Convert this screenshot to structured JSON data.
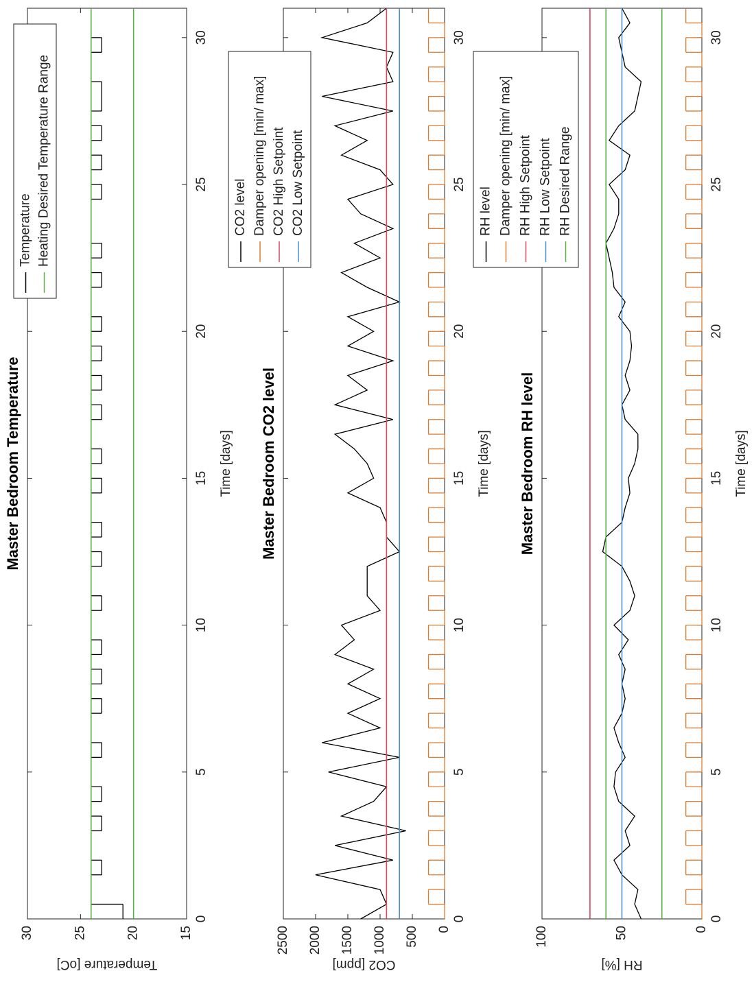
{
  "chart_data": [
    {
      "type": "line",
      "title": "Master Bedroom Temperature",
      "xlabel": "Time [days]",
      "ylabel": "Temperature [oC]",
      "xlim": [
        0,
        31
      ],
      "xticks": [
        0,
        5,
        10,
        15,
        20,
        25,
        30
      ],
      "ylim": [
        15,
        30
      ],
      "yticks": [
        15,
        20,
        25,
        30
      ],
      "legend": "upper right",
      "x": [
        0,
        0.5,
        1,
        1.5,
        2,
        2.5,
        3,
        3.5,
        4,
        4.5,
        5,
        5.5,
        6,
        6.5,
        7,
        7.5,
        8,
        8.5,
        9,
        9.5,
        10,
        10.5,
        11,
        11.5,
        12,
        12.5,
        13,
        13.5,
        14,
        14.5,
        15,
        15.5,
        16,
        16.5,
        17,
        17.5,
        18,
        18.5,
        19,
        19.5,
        20,
        20.5,
        21,
        21.5,
        22,
        22.5,
        23,
        23.5,
        24,
        24.5,
        25,
        25.5,
        26,
        26.5,
        27,
        27.5,
        28,
        28.5,
        29,
        29.5,
        30,
        30.5,
        31
      ],
      "series": [
        {
          "name": "Temperature",
          "color": "#000000",
          "step": true,
          "values": [
            21,
            24,
            24,
            23,
            24,
            24,
            23,
            24,
            23,
            24,
            24,
            23,
            24,
            24,
            23,
            24,
            23,
            24,
            23,
            24,
            24,
            23,
            24,
            24,
            23,
            24,
            23,
            24,
            24,
            23,
            24,
            23,
            24,
            24,
            23,
            24,
            23,
            24,
            23,
            24,
            23,
            24,
            24,
            23,
            24,
            23,
            24,
            24,
            24,
            23,
            24,
            23,
            24,
            23,
            24,
            23,
            23,
            24,
            24,
            23,
            24,
            24,
            23
          ]
        },
        {
          "name": "Heating Desired Temperature Range",
          "color": "#5fae47",
          "range": [
            20,
            24
          ]
        }
      ]
    },
    {
      "type": "line",
      "title": "Master Bedroom CO2 level",
      "xlabel": "Time [days]",
      "ylabel": "CO2 [ppm]",
      "xlim": [
        0,
        31
      ],
      "xticks": [
        0,
        5,
        10,
        15,
        20,
        25,
        30
      ],
      "ylim": [
        0,
        2500
      ],
      "yticks": [
        0,
        500,
        1000,
        1500,
        2000,
        2500
      ],
      "legend": "upper right",
      "x": [
        0,
        0.5,
        1,
        1.5,
        2,
        2.5,
        3,
        3.5,
        4,
        4.5,
        5,
        5.5,
        6,
        6.5,
        7,
        7.5,
        8,
        8.5,
        9,
        9.5,
        10,
        10.5,
        11,
        11.5,
        12,
        12.5,
        13,
        13.5,
        14,
        14.5,
        15,
        15.5,
        16,
        16.5,
        17,
        17.5,
        18,
        18.5,
        19,
        19.5,
        20,
        20.5,
        21,
        21.5,
        22,
        22.5,
        23,
        23.5,
        24,
        24.5,
        25,
        25.5,
        26,
        26.5,
        27,
        27.5,
        28,
        28.5,
        29,
        29.5,
        30,
        30.5,
        31
      ],
      "series": [
        {
          "name": "CO2 level",
          "color": "#000000",
          "values": [
            1300,
            900,
            1000,
            2000,
            800,
            1700,
            600,
            1600,
            1100,
            900,
            1800,
            700,
            1900,
            1000,
            1500,
            1000,
            1500,
            1100,
            1700,
            1400,
            1600,
            1000,
            1200,
            1200,
            1200,
            700,
            900,
            900,
            1000,
            1500,
            1100,
            1200,
            1400,
            1700,
            800,
            1700,
            1200,
            1500,
            800,
            1500,
            1100,
            1500,
            700,
            1200,
            1600,
            1000,
            1400,
            800,
            1300,
            1500,
            800,
            1000,
            1600,
            1200,
            1700,
            800,
            1900,
            800,
            900,
            800,
            1900,
            1200,
            900
          ]
        },
        {
          "name": "Damper opening [min/ max]",
          "color": "#e07a2c",
          "step": true,
          "values": [
            0,
            250,
            0,
            250,
            0,
            250,
            0,
            250,
            0,
            250,
            0,
            250,
            0,
            250,
            0,
            250,
            0,
            250,
            0,
            250,
            0,
            250,
            0,
            250,
            0,
            250,
            0,
            250,
            0,
            250,
            0,
            250,
            0,
            250,
            0,
            250,
            0,
            250,
            0,
            250,
            0,
            250,
            0,
            250,
            0,
            250,
            0,
            250,
            0,
            250,
            0,
            250,
            0,
            250,
            0,
            250,
            0,
            250,
            0,
            250,
            0,
            250,
            0
          ]
        },
        {
          "name": "CO2 High Setpoint",
          "color": "#d9465e",
          "hline": 900
        },
        {
          "name": "CO2 Low Setpoint",
          "color": "#4a90cc",
          "hline": 700
        }
      ]
    },
    {
      "type": "line",
      "title": "Master Bedroom RH level",
      "xlabel": "Time [days]",
      "ylabel": "RH [%]",
      "xlim": [
        0,
        31
      ],
      "xticks": [
        0,
        5,
        10,
        15,
        20,
        25,
        30
      ],
      "ylim": [
        0,
        100
      ],
      "yticks": [
        0,
        50,
        100
      ],
      "legend": "upper right",
      "x": [
        0,
        0.5,
        1,
        1.5,
        2,
        2.5,
        3,
        3.5,
        4,
        4.5,
        5,
        5.5,
        6,
        6.5,
        7,
        7.5,
        8,
        8.5,
        9,
        9.5,
        10,
        10.5,
        11,
        11.5,
        12,
        12.5,
        13,
        13.5,
        14,
        14.5,
        15,
        15.5,
        16,
        16.5,
        17,
        17.5,
        18,
        18.5,
        19,
        19.5,
        20,
        20.5,
        21,
        21.5,
        22,
        22.5,
        23,
        23.5,
        24,
        24.5,
        25,
        25.5,
        26,
        26.5,
        27,
        27.5,
        28,
        28.5,
        29,
        29.5,
        30,
        30.5,
        31
      ],
      "series": [
        {
          "name": "RH level",
          "color": "#000000",
          "values": [
            38,
            42,
            40,
            50,
            55,
            45,
            48,
            42,
            52,
            55,
            54,
            48,
            52,
            55,
            50,
            48,
            50,
            48,
            52,
            46,
            55,
            45,
            42,
            45,
            50,
            62,
            60,
            50,
            48,
            45,
            46,
            42,
            40,
            40,
            48,
            50,
            45,
            48,
            45,
            44,
            45,
            52,
            48,
            55,
            56,
            58,
            60,
            55,
            52,
            52,
            58,
            48,
            45,
            58,
            52,
            42,
            40,
            38,
            48,
            50,
            52,
            45,
            50
          ]
        },
        {
          "name": "Damper opening [min/ max]",
          "color": "#e07a2c",
          "step": true,
          "values": [
            0,
            10,
            0,
            10,
            0,
            10,
            0,
            10,
            0,
            10,
            0,
            10,
            0,
            10,
            0,
            10,
            0,
            10,
            0,
            10,
            0,
            10,
            0,
            10,
            0,
            10,
            0,
            10,
            0,
            10,
            0,
            10,
            0,
            10,
            0,
            10,
            0,
            10,
            0,
            10,
            0,
            10,
            0,
            10,
            0,
            10,
            0,
            10,
            0,
            10,
            0,
            10,
            0,
            10,
            0,
            10,
            0,
            10,
            0,
            10,
            0,
            10,
            0
          ]
        },
        {
          "name": "RH High Setpoint",
          "color": "#d9465e",
          "hline": 70
        },
        {
          "name": "RH Low Setpoint",
          "color": "#4a90cc",
          "hline": 50
        },
        {
          "name": "RH Desired Range",
          "color": "#5fae47",
          "range": [
            25,
            60
          ]
        }
      ]
    }
  ]
}
